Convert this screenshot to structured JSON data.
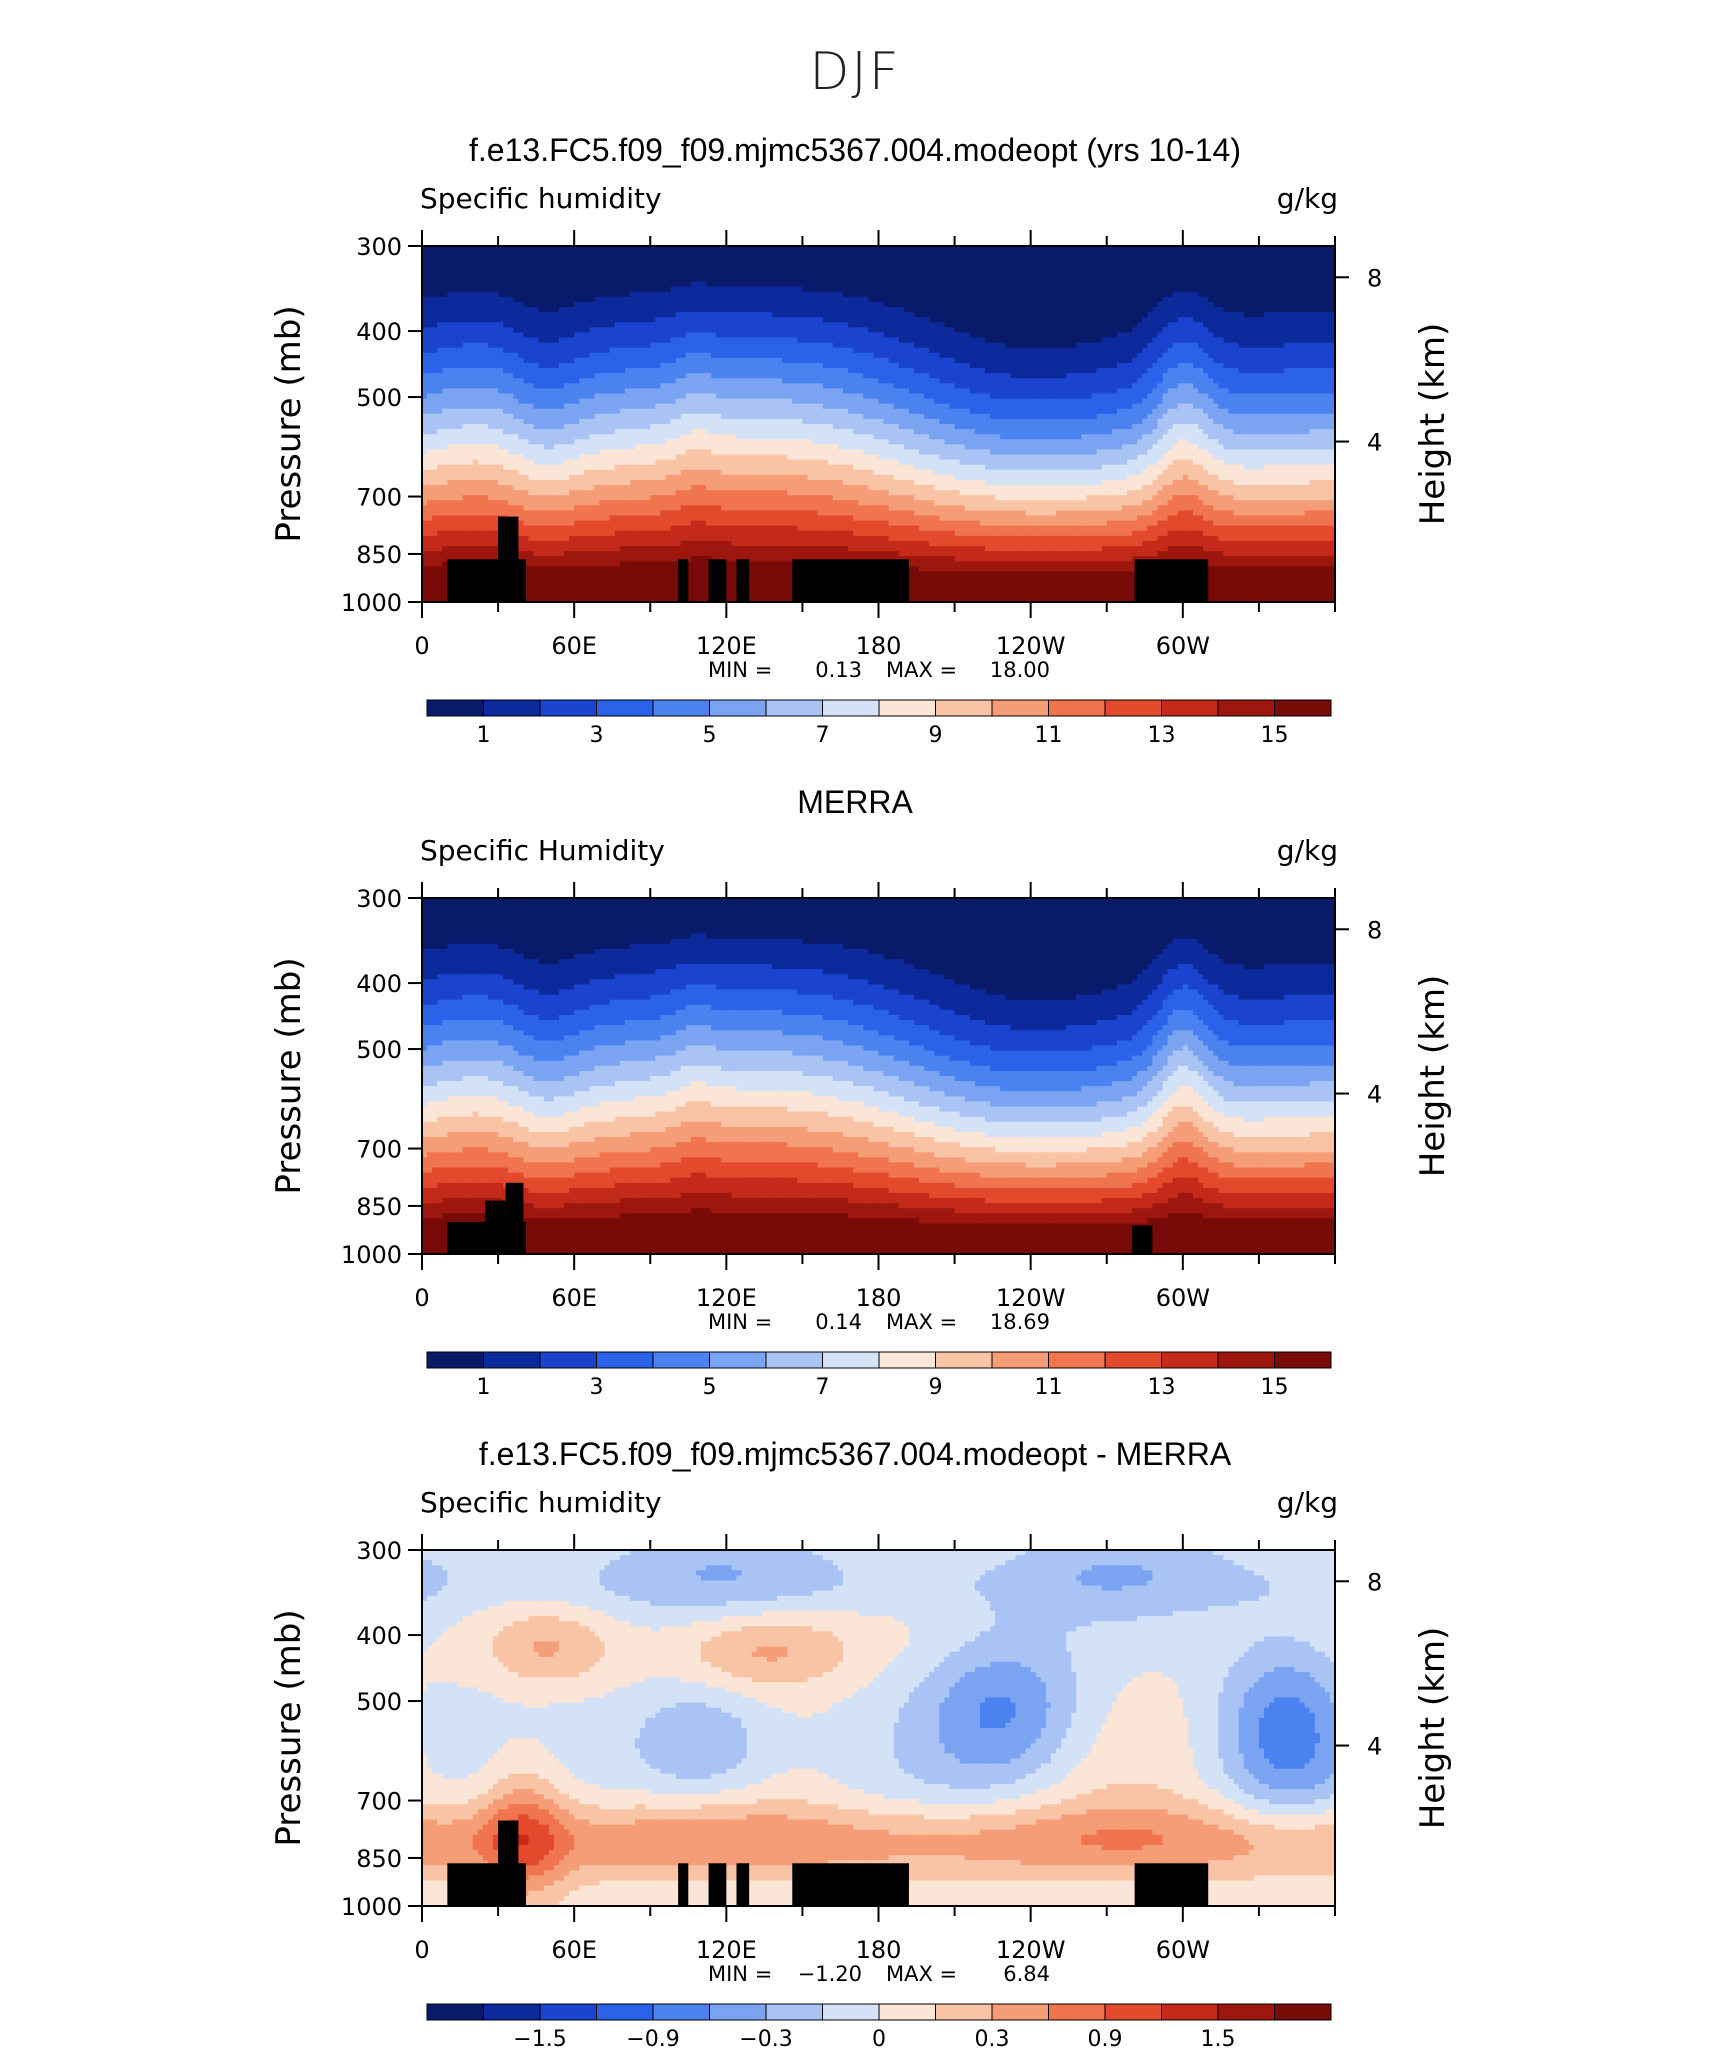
{
  "page": {
    "title": "DJF"
  },
  "chart_data": [
    {
      "type": "heatmap",
      "title": "f.e13.FC5.f09_f09.mjmc5367.004.modeopt (yrs 10-14)",
      "left_label": "Specific humidity",
      "right_label": "g/kg",
      "ylabel": "Pressure (mb)",
      "y2label": "Height (km)",
      "yticks": [
        "300",
        "400",
        "500",
        "700",
        "850",
        "1000"
      ],
      "y2ticks": [
        "8",
        "4"
      ],
      "xticks": [
        "0",
        "60E",
        "120E",
        "180",
        "120W",
        "60W"
      ],
      "stats": {
        "min_label": "MIN =",
        "min": "0.13",
        "max_label": "MAX =",
        "max": "18.00"
      },
      "colorbar_labels": [
        "1",
        "3",
        "5",
        "7",
        "9",
        "11",
        "13",
        "15"
      ],
      "field_range": [
        0.13,
        18.0
      ]
    },
    {
      "type": "heatmap",
      "title": "MERRA",
      "left_label": "Specific Humidity",
      "right_label": "g/kg",
      "ylabel": "Pressure (mb)",
      "y2label": "Height (km)",
      "yticks": [
        "300",
        "400",
        "500",
        "700",
        "850",
        "1000"
      ],
      "y2ticks": [
        "8",
        "4"
      ],
      "xticks": [
        "0",
        "60E",
        "120E",
        "180",
        "120W",
        "60W"
      ],
      "stats": {
        "min_label": "MIN =",
        "min": "0.14",
        "max_label": "MAX =",
        "max": "18.69"
      },
      "colorbar_labels": [
        "1",
        "3",
        "5",
        "7",
        "9",
        "11",
        "13",
        "15"
      ],
      "field_range": [
        0.14,
        18.69
      ]
    },
    {
      "type": "heatmap",
      "title": "f.e13.FC5.f09_f09.mjmc5367.004.modeopt - MERRA",
      "left_label": "Specific humidity",
      "right_label": "g/kg",
      "ylabel": "Pressure (mb)",
      "y2label": "Height (km)",
      "yticks": [
        "300",
        "400",
        "500",
        "700",
        "850",
        "1000"
      ],
      "y2ticks": [
        "8",
        "4"
      ],
      "xticks": [
        "0",
        "60E",
        "120E",
        "180",
        "120W",
        "60W"
      ],
      "stats": {
        "min_label": "MIN =",
        "min": "−1.20",
        "max_label": "MAX =",
        "max": "6.84"
      },
      "colorbar_labels": [
        "−1.5",
        "−0.9",
        "−0.3",
        "0",
        "0.3",
        "0.9",
        "1.5"
      ],
      "field_range": [
        -1.2,
        6.84
      ]
    }
  ],
  "colors": {
    "palette": [
      "#0a1a6b",
      "#0d2a9c",
      "#1a44cf",
      "#2a63ea",
      "#4a82f0",
      "#7aa4f2",
      "#a8c3f4",
      "#d3e2f7",
      "#fbe5d6",
      "#f9c4a6",
      "#f59d76",
      "#f0744d",
      "#e34a2c",
      "#c42a1a",
      "#9e170f",
      "#780a08"
    ],
    "terrain": "#000000"
  }
}
